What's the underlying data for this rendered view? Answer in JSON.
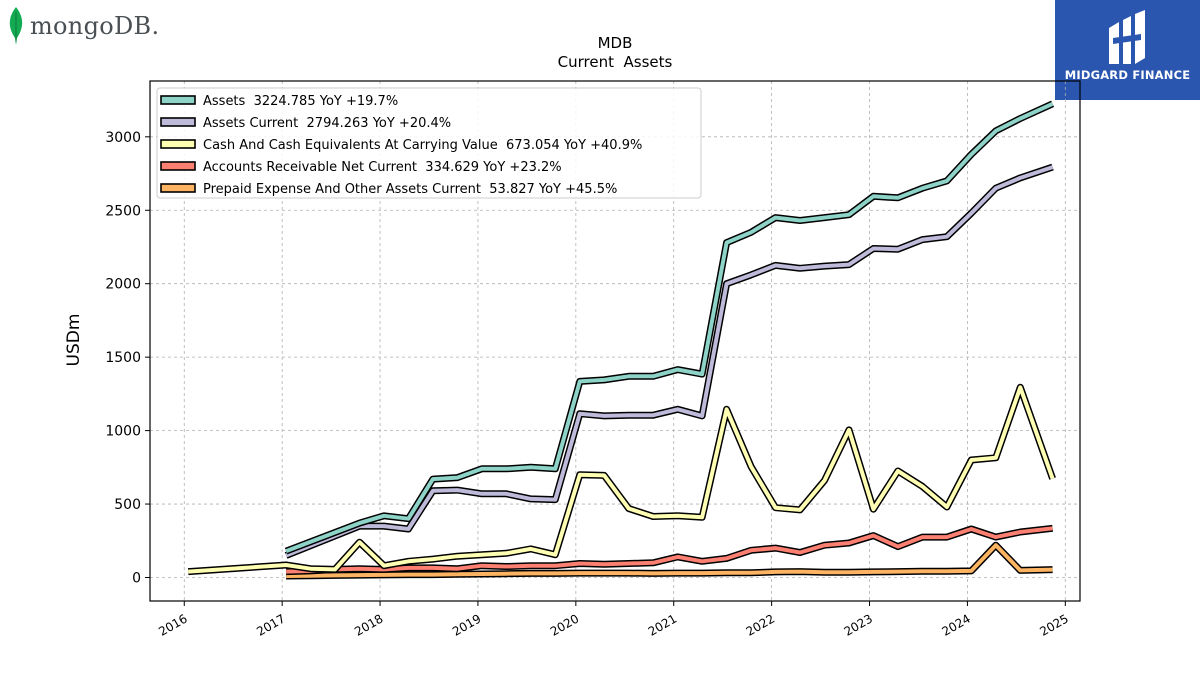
{
  "logos": {
    "left_text": "mongoDB.",
    "right_text": "MIDGARD FINANCE"
  },
  "colors": {
    "Assets": "#8dd3c7",
    "Assets Current": "#bebada",
    "Cash And Cash Equivalents At Carrying Value": "#ffffb3",
    "Accounts Receivable Net Current": "#fb8072",
    "Prepaid Expense And Other Assets Current": "#fdb462",
    "outline": "#000000",
    "grid": "#b0b0b0",
    "mongo_leaf": "#13aa52",
    "midgard_bg": "#2a56b0"
  },
  "chart_data": {
    "type": "line",
    "title": "MDB",
    "subtitle": "Current  Assets",
    "ylabel": "USDm",
    "xlabel": "",
    "xlim": [
      2015.65,
      2025.15
    ],
    "ylim": [
      -160,
      3380
    ],
    "xticks": [
      2016,
      2017,
      2018,
      2019,
      2020,
      2021,
      2022,
      2023,
      2024,
      2025
    ],
    "xtick_labels": [
      "2016",
      "2017",
      "2018",
      "2019",
      "2020",
      "2021",
      "2022",
      "2023",
      "2024",
      "2025"
    ],
    "yticks": [
      0,
      500,
      1000,
      1500,
      2000,
      2500,
      3000
    ],
    "ytick_labels": [
      "0",
      "500",
      "1000",
      "1500",
      "2000",
      "2500",
      "3000"
    ],
    "grid": true,
    "legend_position": "top-left",
    "series": [
      {
        "name": "Assets",
        "legend": "Assets  3224.785 YoY +19.7%",
        "x": [
          2017.04,
          2017.79,
          2018.04,
          2018.29,
          2018.54,
          2018.79,
          2019.04,
          2019.29,
          2019.54,
          2019.79,
          2020.04,
          2020.29,
          2020.54,
          2020.79,
          2021.04,
          2021.29,
          2021.54,
          2021.79,
          2022.04,
          2022.29,
          2022.54,
          2022.79,
          2023.04,
          2023.29,
          2023.54,
          2023.79,
          2024.04,
          2024.29,
          2024.54,
          2024.87
        ],
        "y": [
          180,
          370,
          420,
          400,
          670,
          680,
          740,
          740,
          750,
          740,
          1335,
          1345,
          1370,
          1370,
          1415,
          1385,
          2280,
          2350,
          2450,
          2430,
          2450,
          2470,
          2595,
          2585,
          2650,
          2700,
          2880,
          3040,
          3125,
          3225
        ]
      },
      {
        "name": "Assets Current",
        "legend": "Assets Current  2794.263 YoY +20.4%",
        "x": [
          2017.04,
          2017.79,
          2018.04,
          2018.29,
          2018.54,
          2018.79,
          2019.04,
          2019.29,
          2019.54,
          2019.79,
          2020.04,
          2020.29,
          2020.54,
          2020.79,
          2021.04,
          2021.29,
          2021.54,
          2021.79,
          2022.04,
          2022.29,
          2022.54,
          2022.79,
          2023.04,
          2023.29,
          2023.54,
          2023.79,
          2024.04,
          2024.29,
          2024.54,
          2024.87
        ],
        "y": [
          150,
          350,
          350,
          330,
          590,
          595,
          570,
          570,
          535,
          530,
          1115,
          1100,
          1105,
          1105,
          1145,
          1100,
          2000,
          2060,
          2125,
          2105,
          2120,
          2130,
          2240,
          2235,
          2300,
          2320,
          2480,
          2650,
          2720,
          2794
        ]
      },
      {
        "name": "Cash And Cash Equivalents At Carrying Value",
        "legend": "Cash And Cash Equivalents At Carrying Value  673.054 YoY +40.9%",
        "x": [
          2016.04,
          2017.04,
          2017.29,
          2017.54,
          2017.79,
          2018.04,
          2018.29,
          2018.54,
          2018.79,
          2019.04,
          2019.29,
          2019.54,
          2019.79,
          2020.04,
          2020.29,
          2020.54,
          2020.79,
          2021.04,
          2021.29,
          2021.54,
          2021.79,
          2022.04,
          2022.29,
          2022.54,
          2022.79,
          2023.04,
          2023.29,
          2023.54,
          2023.79,
          2024.04,
          2024.29,
          2024.54,
          2024.87
        ],
        "y": [
          40,
          85,
          60,
          55,
          240,
          80,
          110,
          125,
          145,
          155,
          165,
          195,
          155,
          700,
          695,
          470,
          415,
          420,
          410,
          1145,
          755,
          475,
          460,
          660,
          1005,
          465,
          725,
          620,
          480,
          800,
          815,
          1295,
          673
        ]
      },
      {
        "name": "Accounts Receivable Net Current",
        "legend": "Accounts Receivable Net Current  334.629 YoY +23.2%",
        "x": [
          2017.04,
          2017.29,
          2017.54,
          2017.79,
          2018.04,
          2018.29,
          2018.54,
          2018.79,
          2019.04,
          2019.29,
          2019.54,
          2019.79,
          2020.04,
          2020.29,
          2020.54,
          2020.79,
          2021.04,
          2021.29,
          2021.54,
          2021.79,
          2022.04,
          2022.29,
          2022.54,
          2022.79,
          2023.04,
          2023.29,
          2023.54,
          2023.79,
          2024.04,
          2024.29,
          2024.54,
          2024.87
        ],
        "y": [
          40,
          45,
          55,
          60,
          55,
          65,
          65,
          60,
          80,
          75,
          80,
          80,
          95,
          90,
          95,
          100,
          140,
          110,
          130,
          185,
          200,
          170,
          220,
          235,
          285,
          210,
          275,
          275,
          330,
          275,
          310,
          335
        ]
      },
      {
        "name": "Prepaid Expense And Other Assets Current",
        "legend": "Prepaid Expense And Other Assets Current  53.827 YoY +45.5%",
        "x": [
          2017.04,
          2017.29,
          2017.54,
          2017.79,
          2018.04,
          2018.29,
          2018.54,
          2018.79,
          2019.04,
          2019.29,
          2019.54,
          2019.79,
          2020.04,
          2020.29,
          2020.54,
          2020.79,
          2021.04,
          2021.29,
          2021.54,
          2021.79,
          2022.04,
          2022.29,
          2022.54,
          2022.79,
          2023.04,
          2023.29,
          2023.54,
          2023.79,
          2024.04,
          2024.29,
          2024.54,
          2024.87
        ],
        "y": [
          10,
          12,
          14,
          16,
          18,
          20,
          20,
          22,
          24,
          26,
          28,
          28,
          30,
          30,
          30,
          28,
          30,
          30,
          32,
          32,
          38,
          40,
          36,
          36,
          38,
          40,
          42,
          42,
          45,
          220,
          48,
          54
        ]
      }
    ]
  }
}
